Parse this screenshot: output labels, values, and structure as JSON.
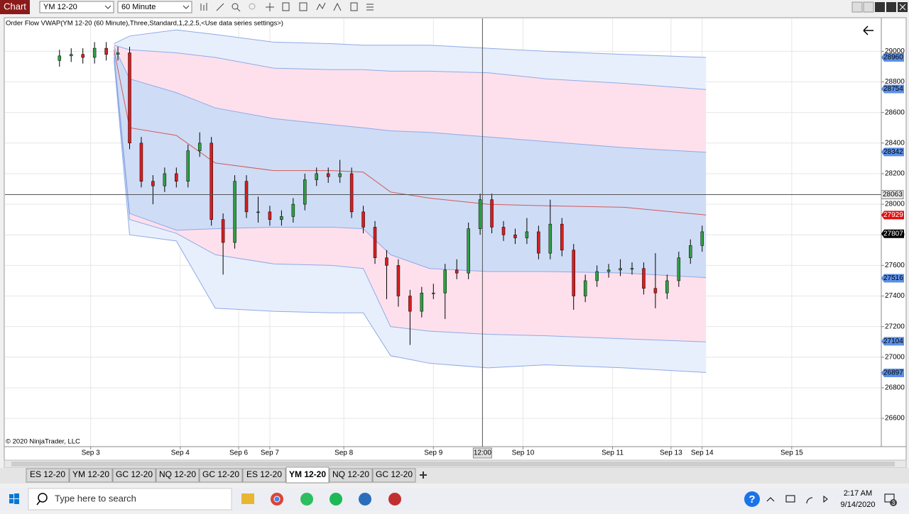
{
  "toolbar": {
    "app": "Chart",
    "instrument": "YM 12-20",
    "interval": "60 Minute"
  },
  "chart_data": {
    "type": "candlestick",
    "title": "Order Flow VWAP(YM 12-20 (60 Minute),Three,Standard,1,2,2.5,<Use data series settings>)",
    "copyright": "© 2020 NinjaTrader, LLC",
    "xlim": [
      -14,
      211
    ],
    "xticks": [
      {
        "value": 8,
        "label": "Sep 3"
      },
      {
        "value": 31,
        "label": "Sep 4"
      },
      {
        "value": 46,
        "label": "Sep 6"
      },
      {
        "value": 54,
        "label": "Sep 7"
      },
      {
        "value": 73,
        "label": "Sep 8"
      },
      {
        "value": 96,
        "label": "Sep 9"
      },
      {
        "value": 119,
        "label": "Sep 10"
      },
      {
        "value": 142,
        "label": "Sep 11"
      },
      {
        "value": 157,
        "label": "Sep 13"
      },
      {
        "value": 165,
        "label": "Sep 14"
      },
      {
        "value": 188,
        "label": "Sep 15"
      }
    ],
    "ylim": [
      26415,
      29215
    ],
    "yticks": [
      26600,
      26800,
      27000,
      27200,
      27400,
      27600,
      27800,
      28000,
      28200,
      28400,
      28600,
      28800,
      29000
    ],
    "grid": true,
    "candles": {
      "x": [
        0,
        3,
        6,
        9,
        12,
        15,
        18,
        21,
        24,
        27,
        30,
        33,
        36,
        39,
        42,
        45,
        48,
        51,
        54,
        57,
        60,
        63,
        66,
        69,
        72,
        75,
        78,
        81,
        84,
        87,
        90,
        93,
        96,
        99,
        102,
        105,
        108,
        111,
        114,
        117,
        120,
        123,
        126,
        129,
        132,
        135,
        138,
        141,
        144,
        147,
        150,
        153,
        156,
        159,
        162,
        165
      ],
      "open": [
        28940,
        28970,
        28980,
        28960,
        29020,
        28980,
        28990,
        28400,
        28150,
        28120,
        28200,
        28150,
        28350,
        28400,
        27900,
        27750,
        28150,
        27950,
        27950,
        27900,
        27920,
        28000,
        28160,
        28200,
        28180,
        28200,
        27950,
        27850,
        27650,
        27600,
        27400,
        27300,
        27420,
        27420,
        27570,
        27550,
        27840,
        28030,
        27850,
        27800,
        27780,
        27820,
        27680,
        27870,
        27700,
        27400,
        27500,
        27560,
        27570,
        27580,
        27580,
        27450,
        27420,
        27500,
        27650,
        27730
      ],
      "high": [
        29010,
        29020,
        29020,
        29060,
        29060,
        29030,
        29030,
        28440,
        28190,
        28240,
        28240,
        28390,
        28470,
        28440,
        27940,
        28190,
        28190,
        28050,
        27990,
        27960,
        28040,
        28200,
        28240,
        28240,
        28290,
        28240,
        27990,
        27890,
        27700,
        27640,
        27440,
        27460,
        27480,
        27610,
        27640,
        27880,
        28070,
        28070,
        27890,
        27840,
        27910,
        27860,
        28030,
        27910,
        27740,
        27540,
        27600,
        27610,
        27640,
        27620,
        27620,
        27680,
        27540,
        27690,
        27770,
        27860
      ],
      "low": [
        28900,
        28930,
        28920,
        28920,
        28940,
        28940,
        28360,
        28110,
        28000,
        28080,
        28110,
        28110,
        28310,
        27860,
        27540,
        27710,
        27910,
        27880,
        27860,
        27860,
        27880,
        27960,
        28120,
        28140,
        28140,
        27910,
        27810,
        27610,
        27380,
        27330,
        27080,
        27260,
        27380,
        27250,
        27510,
        27510,
        27800,
        27810,
        27760,
        27740,
        27740,
        27640,
        27640,
        27660,
        27310,
        27360,
        27460,
        27520,
        27530,
        27540,
        27410,
        27320,
        27380,
        27460,
        27610,
        27690
      ],
      "close": [
        28970,
        28980,
        28960,
        29020,
        28980,
        28990,
        28400,
        28150,
        28120,
        28200,
        28150,
        28350,
        28400,
        27900,
        27750,
        28150,
        27950,
        27950,
        27900,
        27920,
        28000,
        28160,
        28200,
        28180,
        28200,
        27950,
        27850,
        27650,
        27600,
        27400,
        27300,
        27420,
        27420,
        27570,
        27550,
        27840,
        28030,
        27850,
        27800,
        27780,
        27820,
        27680,
        27870,
        27700,
        27400,
        27500,
        27560,
        27570,
        27580,
        27580,
        27450,
        27420,
        27500,
        27650,
        27730,
        27820
      ],
      "up_color": "#2ea043",
      "down_color": "#d81e1e"
    },
    "band_x": [
      14,
      18,
      30,
      40,
      55,
      70,
      78,
      85,
      95,
      110,
      125,
      145,
      166
    ],
    "bands": [
      {
        "color": "#8eaae6",
        "values": [
          29050,
          29100,
          29140,
          29110,
          29060,
          29050,
          29040,
          29040,
          29040,
          29020,
          29000,
          28980,
          28960
        ]
      },
      {
        "color": "#8eaae6",
        "values": [
          29040,
          29010,
          28990,
          28960,
          28890,
          28880,
          28880,
          28870,
          28870,
          28860,
          28820,
          28790,
          28750
        ]
      },
      {
        "color": "#8eaae6",
        "values": [
          29030,
          28820,
          28730,
          28630,
          28560,
          28520,
          28500,
          28480,
          28470,
          28440,
          28410,
          28370,
          28340
        ]
      },
      {
        "color": "#d05a5a",
        "values": [
          29010,
          28500,
          28450,
          28270,
          28220,
          28220,
          28210,
          28080,
          28040,
          28000,
          27990,
          27980,
          27930
        ]
      },
      {
        "color": "#8eaae6",
        "values": [
          28990,
          27940,
          27830,
          27840,
          27850,
          27850,
          27840,
          27670,
          27580,
          27560,
          27560,
          27550,
          27520
        ]
      },
      {
        "color": "#8eaae6",
        "values": [
          28960,
          27900,
          27810,
          27670,
          27610,
          27600,
          27580,
          27200,
          27170,
          27150,
          27140,
          27120,
          27100
        ]
      },
      {
        "color": "#8eaae6",
        "values": [
          28940,
          27800,
          27760,
          27320,
          27300,
          27290,
          27290,
          27010,
          26960,
          26930,
          26950,
          26930,
          26900
        ]
      }
    ],
    "fill_colors": [
      "#e8effc",
      "#fde0ec",
      "#cfdcf6",
      "#fde0ec",
      "#e8effc"
    ],
    "price_markers": [
      {
        "value": 28960,
        "color": "#5b8fe6",
        "text_color": "#000000"
      },
      {
        "value": 28754,
        "color": "#5b8fe6",
        "text_color": "#000000"
      },
      {
        "value": 28342,
        "color": "#5b8fe6",
        "text_color": "#000000"
      },
      {
        "value": 27929,
        "color": "#e01010",
        "text_color": "#ffffff"
      },
      {
        "value": 27807,
        "color": "#000000",
        "text_color": "#ffffff"
      },
      {
        "value": 27516,
        "color": "#5b8fe6",
        "text_color": "#000000"
      },
      {
        "value": 27104,
        "color": "#5b8fe6",
        "text_color": "#000000"
      },
      {
        "value": 26897,
        "color": "#5b8fe6",
        "text_color": "#000000"
      }
    ],
    "crosshair": {
      "x": 108.6,
      "x_label": "12:00",
      "y": 28063
    }
  },
  "tabs": [
    "ES 12-20",
    "YM 12-20",
    "GC 12-20",
    "NQ 12-20",
    "GC 12-20",
    "ES 12-20",
    "YM 12-20",
    "NQ 12-20",
    "GC 12-20"
  ],
  "active_tab": 6,
  "taskbar": {
    "search": "Type here to search",
    "time": "2:17 AM",
    "date": "9/14/2020",
    "notifications": 3
  }
}
